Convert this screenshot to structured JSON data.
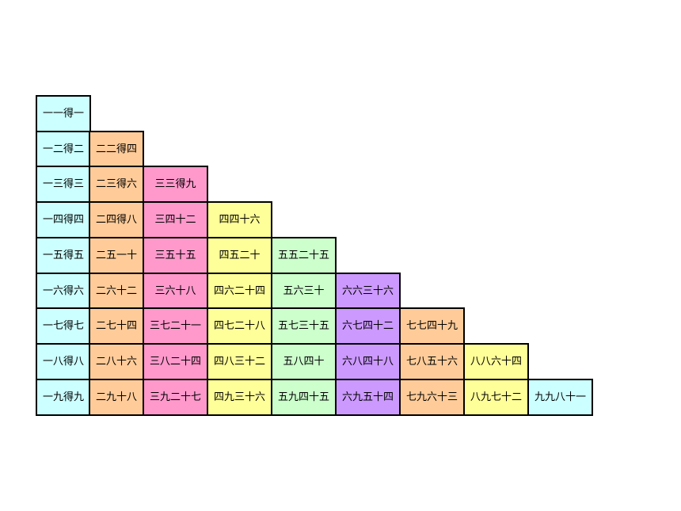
{
  "column_colors": [
    "#ccffff",
    "#ffcc99",
    "#ff99cc",
    "#ffff99",
    "#ccffcc",
    "#cc99ff",
    "#ffcc99",
    "#ffff99",
    "#ccffff"
  ],
  "rows": [
    [
      "一一得一"
    ],
    [
      "一二得二",
      "二二得四"
    ],
    [
      "一三得三",
      "二三得六",
      "三三得九"
    ],
    [
      "一四得四",
      "二四得八",
      "三四十二",
      "四四十六"
    ],
    [
      "一五得五",
      "二五一十",
      "三五十五",
      "四五二十",
      "五五二十五"
    ],
    [
      "一六得六",
      "二六十二",
      "三六十八",
      "四六二十四",
      "五六三十",
      "六六三十六"
    ],
    [
      "一七得七",
      "二七十四",
      "三七二十一",
      "四七二十八",
      "五七三十五",
      "六七四十二",
      "七七四十九"
    ],
    [
      "一八得八",
      "二八十六",
      "三八二十四",
      "四八三十二",
      "五八四十",
      "六八四十八",
      "七八五十六",
      "八八六十四"
    ],
    [
      "一九得九",
      "二九十八",
      "三九二十七",
      "四九三十六",
      "五九四十五",
      "六九五十四",
      "七九六十三",
      "八九七十二",
      "九九八十一"
    ]
  ]
}
